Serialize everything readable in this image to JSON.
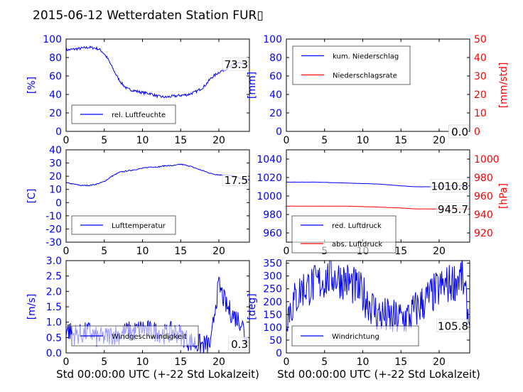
{
  "title": "2015-06-12 Wetterdaten Station FUR▯",
  "xlabel": "Std 00:00:00 UTC (+-22 Std Lokalzeit)",
  "colors": {
    "primary": "#0000ff",
    "secondary": "#ff0000"
  },
  "chart_data": [
    {
      "panel": "humidity",
      "type": "line",
      "xlim": [
        0,
        24
      ],
      "ylim": [
        0,
        100
      ],
      "xticks": [
        0,
        5,
        10,
        15,
        20
      ],
      "yticks": [
        0,
        20,
        40,
        60,
        80,
        100
      ],
      "ylabel": "[%]",
      "last_value": "73.3",
      "legend": "bottom-left",
      "series": [
        {
          "name": "rel. Luftfeuchte",
          "color": "#0000ff",
          "noise": 1.5,
          "points": [
            [
              0,
              88
            ],
            [
              1,
              89
            ],
            [
              2,
              90
            ],
            [
              3,
              91
            ],
            [
              4,
              90
            ],
            [
              4.5,
              88
            ],
            [
              5,
              84
            ],
            [
              5.5,
              78
            ],
            [
              6,
              70
            ],
            [
              6.5,
              62
            ],
            [
              7,
              55
            ],
            [
              7.5,
              50
            ],
            [
              8,
              46
            ],
            [
              9,
              44
            ],
            [
              10,
              42
            ],
            [
              11,
              41
            ],
            [
              12,
              38
            ],
            [
              13,
              37
            ],
            [
              14,
              38
            ],
            [
              15,
              39
            ],
            [
              16,
              40
            ],
            [
              17,
              43
            ],
            [
              18,
              48
            ],
            [
              19,
              58
            ],
            [
              20,
              64
            ],
            [
              21,
              68
            ],
            [
              22,
              72
            ],
            [
              22.5,
              74
            ],
            [
              23,
              73
            ],
            [
              23.5,
              73
            ]
          ]
        }
      ]
    },
    {
      "panel": "precipitation",
      "type": "line",
      "xlim": [
        0,
        24
      ],
      "ylim": [
        0,
        100
      ],
      "ylim_right": [
        0,
        50
      ],
      "xticks": [
        0,
        5,
        10,
        15,
        20
      ],
      "yticks": [
        0,
        20,
        40,
        60,
        80,
        100
      ],
      "yticks_right": [
        0,
        10,
        20,
        30,
        40,
        50
      ],
      "ylabel": "[mm]",
      "ylabel_right": "[mm/std]",
      "last_value": "0.0",
      "last_value_right": "0.0",
      "legend": "top-left",
      "series": [
        {
          "name": "kum. Niederschlag",
          "color": "#0000ff",
          "axis": "left",
          "noise": 0,
          "points": [
            [
              0,
              0
            ],
            [
              24,
              0
            ]
          ]
        },
        {
          "name": "Niederschlagsrate",
          "color": "#ff0000",
          "axis": "right",
          "noise": 0,
          "points": [
            [
              0,
              0
            ],
            [
              24,
              0
            ]
          ]
        }
      ]
    },
    {
      "panel": "temperature",
      "type": "line",
      "xlim": [
        0,
        24
      ],
      "ylim": [
        -30,
        40
      ],
      "xticks": [
        0,
        5,
        10,
        15,
        20
      ],
      "yticks": [
        -30,
        -20,
        -10,
        0,
        10,
        20,
        30,
        40
      ],
      "ylabel": "[C]",
      "last_value": "17.5",
      "legend": "bottom-left",
      "series": [
        {
          "name": "Lufttemperatur",
          "color": "#0000ff",
          "noise": 0.4,
          "points": [
            [
              0,
              15
            ],
            [
              1,
              14
            ],
            [
              2,
              13
            ],
            [
              3,
              13
            ],
            [
              4,
              14
            ],
            [
              5,
              16
            ],
            [
              6,
              20
            ],
            [
              7,
              23
            ],
            [
              8,
              24
            ],
            [
              9,
              25
            ],
            [
              10,
              26
            ],
            [
              11,
              27
            ],
            [
              12,
              27
            ],
            [
              13,
              28
            ],
            [
              14,
              28
            ],
            [
              15,
              29
            ],
            [
              16,
              28
            ],
            [
              17,
              26
            ],
            [
              18,
              24
            ],
            [
              19,
              22
            ],
            [
              20,
              21
            ],
            [
              21,
              21
            ],
            [
              22,
              20
            ],
            [
              23,
              18
            ],
            [
              24,
              17.5
            ]
          ]
        }
      ]
    },
    {
      "panel": "pressure",
      "type": "line",
      "xlim": [
        0,
        24
      ],
      "ylim": [
        950,
        1050
      ],
      "ylim_right": [
        910,
        1010
      ],
      "xticks": [
        0,
        5,
        10,
        15,
        20
      ],
      "yticks": [
        960,
        980,
        1000,
        1020,
        1040
      ],
      "yticks_right": [
        920,
        940,
        960,
        980,
        1000
      ],
      "ylabel_right": "[hPa]",
      "last_value": "1010.8",
      "last_value_right": "945.7",
      "legend": "bottom-left",
      "series": [
        {
          "name": "red. Luftdruck",
          "color": "#0000ff",
          "axis": "left",
          "noise": 0.1,
          "points": [
            [
              0,
              1015
            ],
            [
              4,
              1015
            ],
            [
              8,
              1014
            ],
            [
              12,
              1013
            ],
            [
              15,
              1011
            ],
            [
              17,
              1010
            ],
            [
              19,
              1010
            ],
            [
              21,
              1011
            ],
            [
              24,
              1011
            ]
          ]
        },
        {
          "name": "abs. Luftdruck",
          "color": "#ff0000",
          "axis": "right",
          "noise": 0.1,
          "points": [
            [
              0,
              949
            ],
            [
              4,
              949
            ],
            [
              8,
              949
            ],
            [
              12,
              948
            ],
            [
              15,
              947
            ],
            [
              17,
              946
            ],
            [
              19,
              946
            ],
            [
              21,
              946
            ],
            [
              24,
              946
            ]
          ]
        }
      ]
    },
    {
      "panel": "windspeed",
      "type": "line",
      "xlim": [
        0,
        24
      ],
      "ylim": [
        0,
        3
      ],
      "xticks": [
        0,
        5,
        10,
        15,
        20
      ],
      "yticks": [
        0.0,
        0.5,
        1.0,
        1.5,
        2.0,
        2.5,
        3.0
      ],
      "ylabel": "[m/s]",
      "last_value": "0.3",
      "legend": "bottom-center",
      "series": [
        {
          "name": "Windgeschwindigkeit",
          "color": "#0000ff",
          "noise": 0.35,
          "points": [
            [
              0,
              0.8
            ],
            [
              1,
              0.6
            ],
            [
              2,
              0.6
            ],
            [
              3,
              0.7
            ],
            [
              4,
              0.5
            ],
            [
              5,
              0.5
            ],
            [
              6,
              0.6
            ],
            [
              7,
              0.6
            ],
            [
              8,
              0.7
            ],
            [
              9,
              0.7
            ],
            [
              10,
              0.8
            ],
            [
              11,
              0.7
            ],
            [
              12,
              0.7
            ],
            [
              13,
              0.6
            ],
            [
              14,
              0.7
            ],
            [
              15,
              0.6
            ],
            [
              16,
              0.4
            ],
            [
              17,
              0.3
            ],
            [
              18,
              0.25
            ],
            [
              19,
              0.3
            ],
            [
              19.5,
              1.5
            ],
            [
              20,
              2.2
            ],
            [
              21,
              1.5
            ],
            [
              22,
              1.2
            ],
            [
              23,
              1.0
            ],
            [
              23.7,
              0.3
            ]
          ]
        }
      ]
    },
    {
      "panel": "winddirection",
      "type": "line",
      "xlim": [
        0,
        24
      ],
      "ylim": [
        0,
        360
      ],
      "xticks": [
        0,
        5,
        10,
        15,
        20
      ],
      "yticks": [
        0,
        50,
        100,
        150,
        200,
        250,
        300,
        350
      ],
      "ylabel": "[deg]",
      "last_value": "105.8",
      "legend": "bottom-center",
      "series": [
        {
          "name": "Windrichtung",
          "color": "#0000ff",
          "noise": 80,
          "points": [
            [
              0,
              150
            ],
            [
              2,
              250
            ],
            [
              4,
              270
            ],
            [
              6,
              300
            ],
            [
              8,
              280
            ],
            [
              10,
              230
            ],
            [
              12,
              150
            ],
            [
              14,
              130
            ],
            [
              16,
              140
            ],
            [
              18,
              200
            ],
            [
              20,
              250
            ],
            [
              22,
              280
            ],
            [
              23,
              300
            ],
            [
              24,
              106
            ]
          ]
        }
      ]
    }
  ]
}
